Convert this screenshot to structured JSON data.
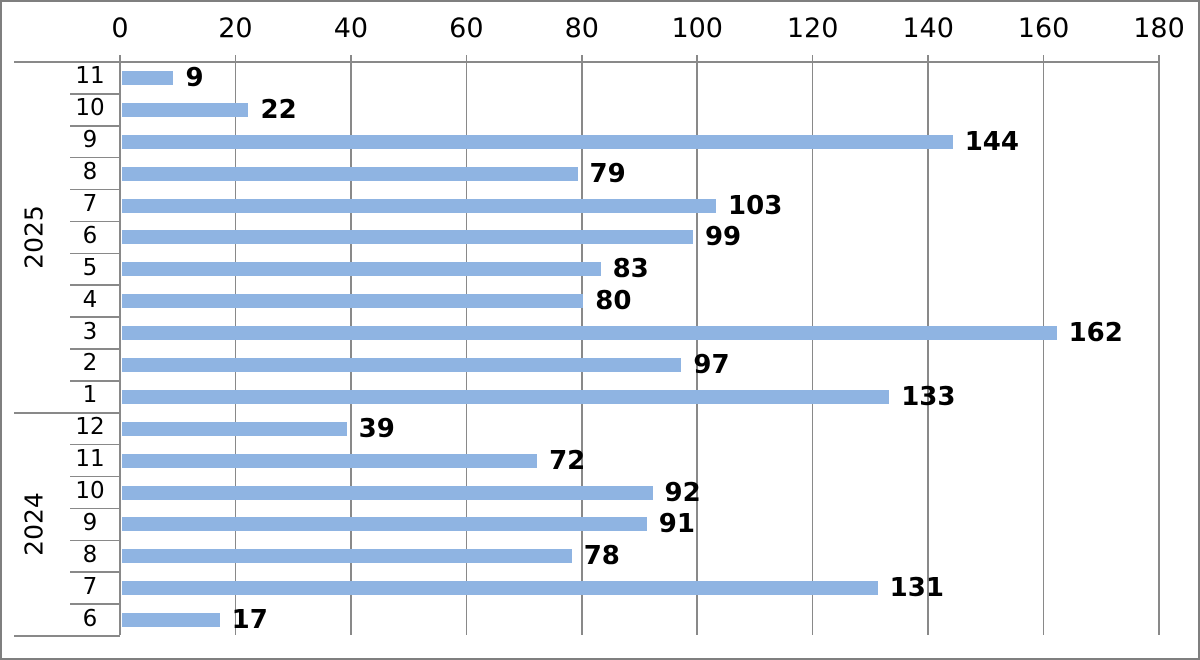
{
  "chart_data": {
    "type": "bar",
    "orientation": "horizontal",
    "title": "",
    "x_axis": {
      "position": "top",
      "min": 0,
      "max": 180,
      "tick_step": 20,
      "ticks": [
        0,
        20,
        40,
        60,
        80,
        100,
        120,
        140,
        160,
        180
      ]
    },
    "grid": true,
    "groups": [
      {
        "year": "2025",
        "rows": [
          {
            "label": "11",
            "value": 9
          },
          {
            "label": "10",
            "value": 22
          },
          {
            "label": "9",
            "value": 144
          },
          {
            "label": "8",
            "value": 79
          },
          {
            "label": "7",
            "value": 103
          },
          {
            "label": "6",
            "value": 99
          },
          {
            "label": "5",
            "value": 83
          },
          {
            "label": "4",
            "value": 80
          },
          {
            "label": "3",
            "value": 162
          },
          {
            "label": "2",
            "value": 97
          },
          {
            "label": "1",
            "value": 133
          }
        ]
      },
      {
        "year": "2024",
        "rows": [
          {
            "label": "12",
            "value": 39
          },
          {
            "label": "11",
            "value": 72
          },
          {
            "label": "10",
            "value": 92
          },
          {
            "label": "9",
            "value": 91
          },
          {
            "label": "8",
            "value": 78
          },
          {
            "label": "7",
            "value": 131
          },
          {
            "label": "6",
            "value": 17
          }
        ]
      }
    ],
    "colors": {
      "bar": "#8fb4e2",
      "grid": "#898989",
      "text": "#000000",
      "border": "#7f7f7f",
      "background": "#ffffff"
    }
  }
}
